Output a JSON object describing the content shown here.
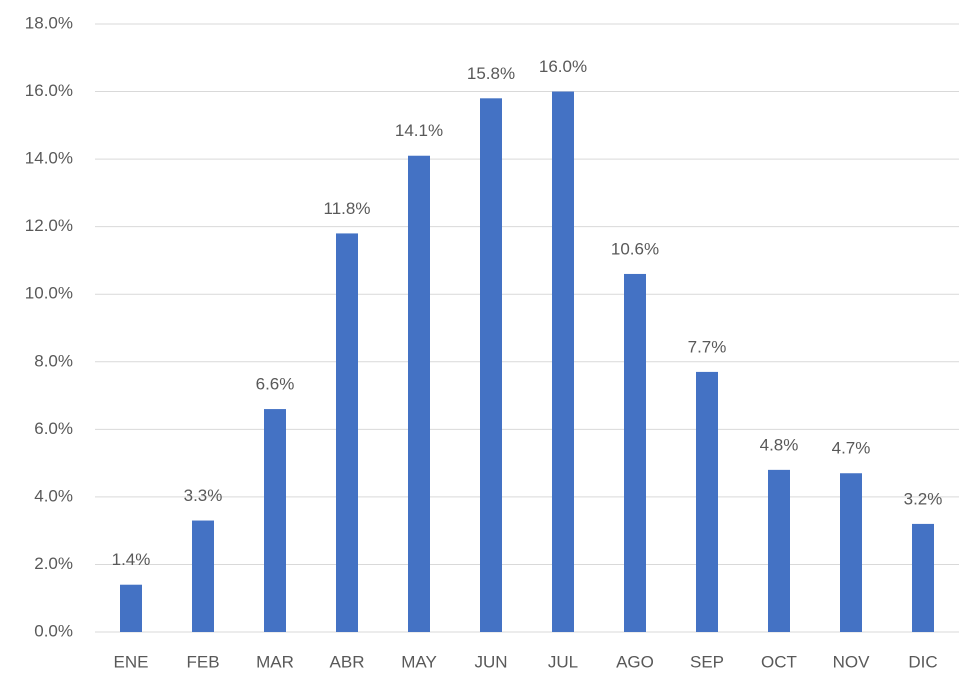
{
  "chart_data": {
    "type": "bar",
    "categories": [
      "ENE",
      "FEB",
      "MAR",
      "ABR",
      "MAY",
      "JUN",
      "JUL",
      "AGO",
      "SEP",
      "OCT",
      "NOV",
      "DIC"
    ],
    "values": [
      1.4,
      3.3,
      6.6,
      11.8,
      14.1,
      15.8,
      16.0,
      10.6,
      7.7,
      4.8,
      4.7,
      3.2
    ],
    "value_labels": [
      "1.4%",
      "3.3%",
      "6.6%",
      "11.8%",
      "14.1%",
      "15.8%",
      "16.0%",
      "10.6%",
      "7.7%",
      "4.8%",
      "4.7%",
      "3.2%"
    ],
    "color": "#4472c4",
    "ylim": [
      0,
      18
    ],
    "yticks": [
      {
        "value": 0,
        "label": "0.0%"
      },
      {
        "value": 2,
        "label": "2.0%"
      },
      {
        "value": 4,
        "label": "4.0%"
      },
      {
        "value": 6,
        "label": "6.0%"
      },
      {
        "value": 8,
        "label": "8.0%"
      },
      {
        "value": 10,
        "label": "10.0%"
      },
      {
        "value": 12,
        "label": "12.0%"
      },
      {
        "value": 14,
        "label": "14.0%"
      },
      {
        "value": 16,
        "label": "16.0%"
      },
      {
        "value": 18,
        "label": "18.0%"
      }
    ],
    "grid": true
  }
}
